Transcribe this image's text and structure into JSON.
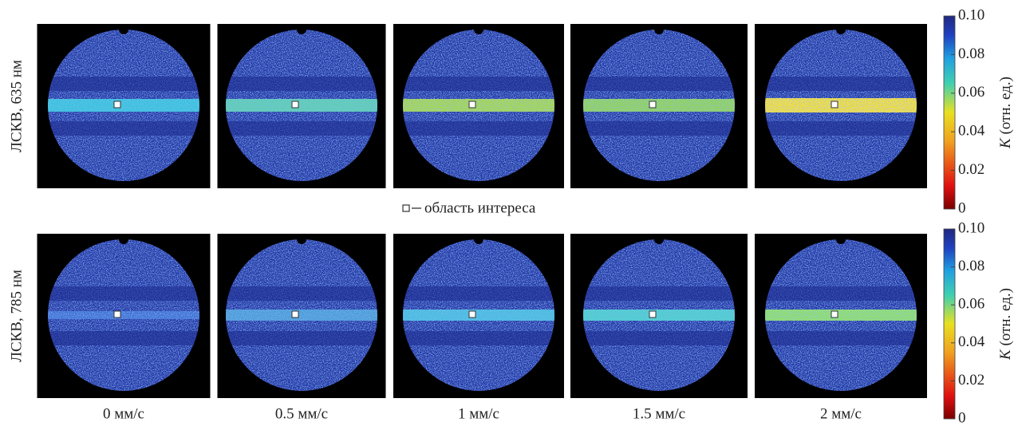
{
  "rows": [
    {
      "label": "ЛСКВ, 635 нм"
    },
    {
      "label": "ЛСКВ, 785 нм"
    }
  ],
  "columns": [
    "0 мм/с",
    "0.5 мм/с",
    "1 мм/с",
    "1.5 мм/с",
    "2 мм/с"
  ],
  "legend": "область интереса",
  "colorbar": {
    "label_var": "K",
    "label_unit": " (отн. ед.)",
    "ticks": [
      {
        "value": 0.1,
        "label": "0.10"
      },
      0.08,
      0.06,
      0.04,
      0.02,
      0
    ]
  }
}
